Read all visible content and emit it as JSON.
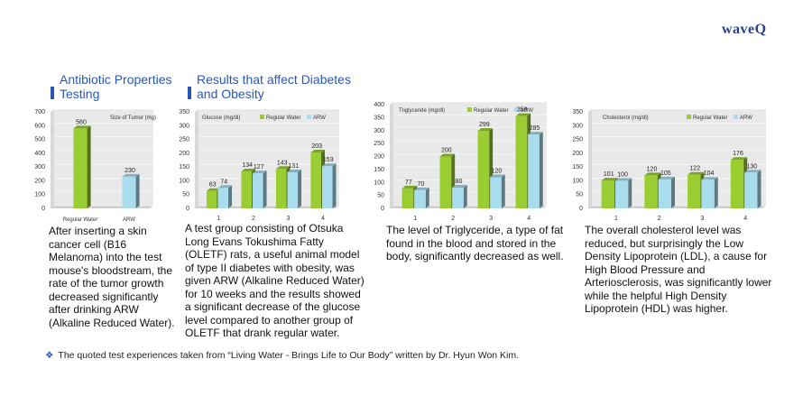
{
  "logo": "waveQ",
  "sections": {
    "antibiotic_title_line1": "Antibiotic Properties",
    "antibiotic_title_line2": "Testing",
    "diabetes_title_line1": "Results that affect Diabetes",
    "diabetes_title_line2": "and Obesity"
  },
  "descriptions": {
    "tumor": "After inserting a skin cancer cell (B16 Melanoma) into the test mouse's bloodstream, the rate of the tumor growth decreased significantly after drinking ARW (Alkaline Reduced Water).",
    "glucose": "A test group consisting of Otsuka Long Evans Tokushima Fatty (OLETF) rats, a useful animal model of type II diabetes with obesity, was given ARW (Alkaline Reduced Water) for 10 weeks and the results showed a significant decrease of the glucose level compared to another group of OLETF that drank regular water.",
    "triglyceride": "The level of Triglyceride, a type of fat found in the blood and stored in the body, significantly decreased as well.",
    "cholesterol": "The overall cholesterol level was reduced, but surprisingly the Low Density Lipoprotein (LDL), a cause for High Blood Pressure and Arteriosclerosis, was significantly lower while the helpful High Density Lipoprotein (HDL) was higher."
  },
  "footnote": "The quoted test experiences taken from “Living Water - Brings Life to Our Body” written by Dr. Hyun Won Kim.",
  "colors": {
    "regular": "#9acd32",
    "arw": "#a9dced",
    "title": "#2a57b7"
  },
  "chart_data": [
    {
      "id": "tumor",
      "type": "bar",
      "title": "Size of Tumor (mg)",
      "categories": [
        "Regular Water",
        "ARW"
      ],
      "values": [
        580,
        230
      ],
      "ylim": [
        0,
        700
      ],
      "yticks": [
        0,
        100,
        200,
        300,
        400,
        500,
        600,
        700
      ]
    },
    {
      "id": "glucose",
      "type": "bar",
      "title": "Glucose (mg/dl)",
      "categories": [
        "1",
        "2",
        "3",
        "4"
      ],
      "series": [
        {
          "name": "Regular Water",
          "values": [
            63,
            134,
            143,
            203
          ]
        },
        {
          "name": "ARW",
          "values": [
            74,
            127,
            131,
            153
          ]
        }
      ],
      "ylim": [
        0,
        350
      ],
      "yticks": [
        0,
        50,
        100,
        150,
        200,
        250,
        300,
        350
      ]
    },
    {
      "id": "triglyceride",
      "type": "bar",
      "title": "Triglyceride (mg/dl)",
      "categories": [
        "1",
        "2",
        "3",
        "4"
      ],
      "series": [
        {
          "name": "Regular Water",
          "values": [
            77,
            200,
            299,
            356
          ]
        },
        {
          "name": "ARW",
          "values": [
            70,
            80,
            120,
            285
          ]
        }
      ],
      "ylim": [
        0,
        400
      ],
      "yticks": [
        0,
        50,
        100,
        150,
        200,
        250,
        300,
        350,
        400
      ]
    },
    {
      "id": "cholesterol",
      "type": "bar",
      "title": "Cholesterol (mg/dl)",
      "categories": [
        "1",
        "2",
        "3",
        "4"
      ],
      "series": [
        {
          "name": "Regular Water",
          "values": [
            101,
            120,
            122,
            176
          ]
        },
        {
          "name": "ARW",
          "values": [
            100,
            105,
            104,
            130
          ]
        }
      ],
      "ylim": [
        0,
        350
      ],
      "yticks": [
        0,
        50,
        100,
        150,
        200,
        250,
        300,
        350
      ]
    }
  ]
}
